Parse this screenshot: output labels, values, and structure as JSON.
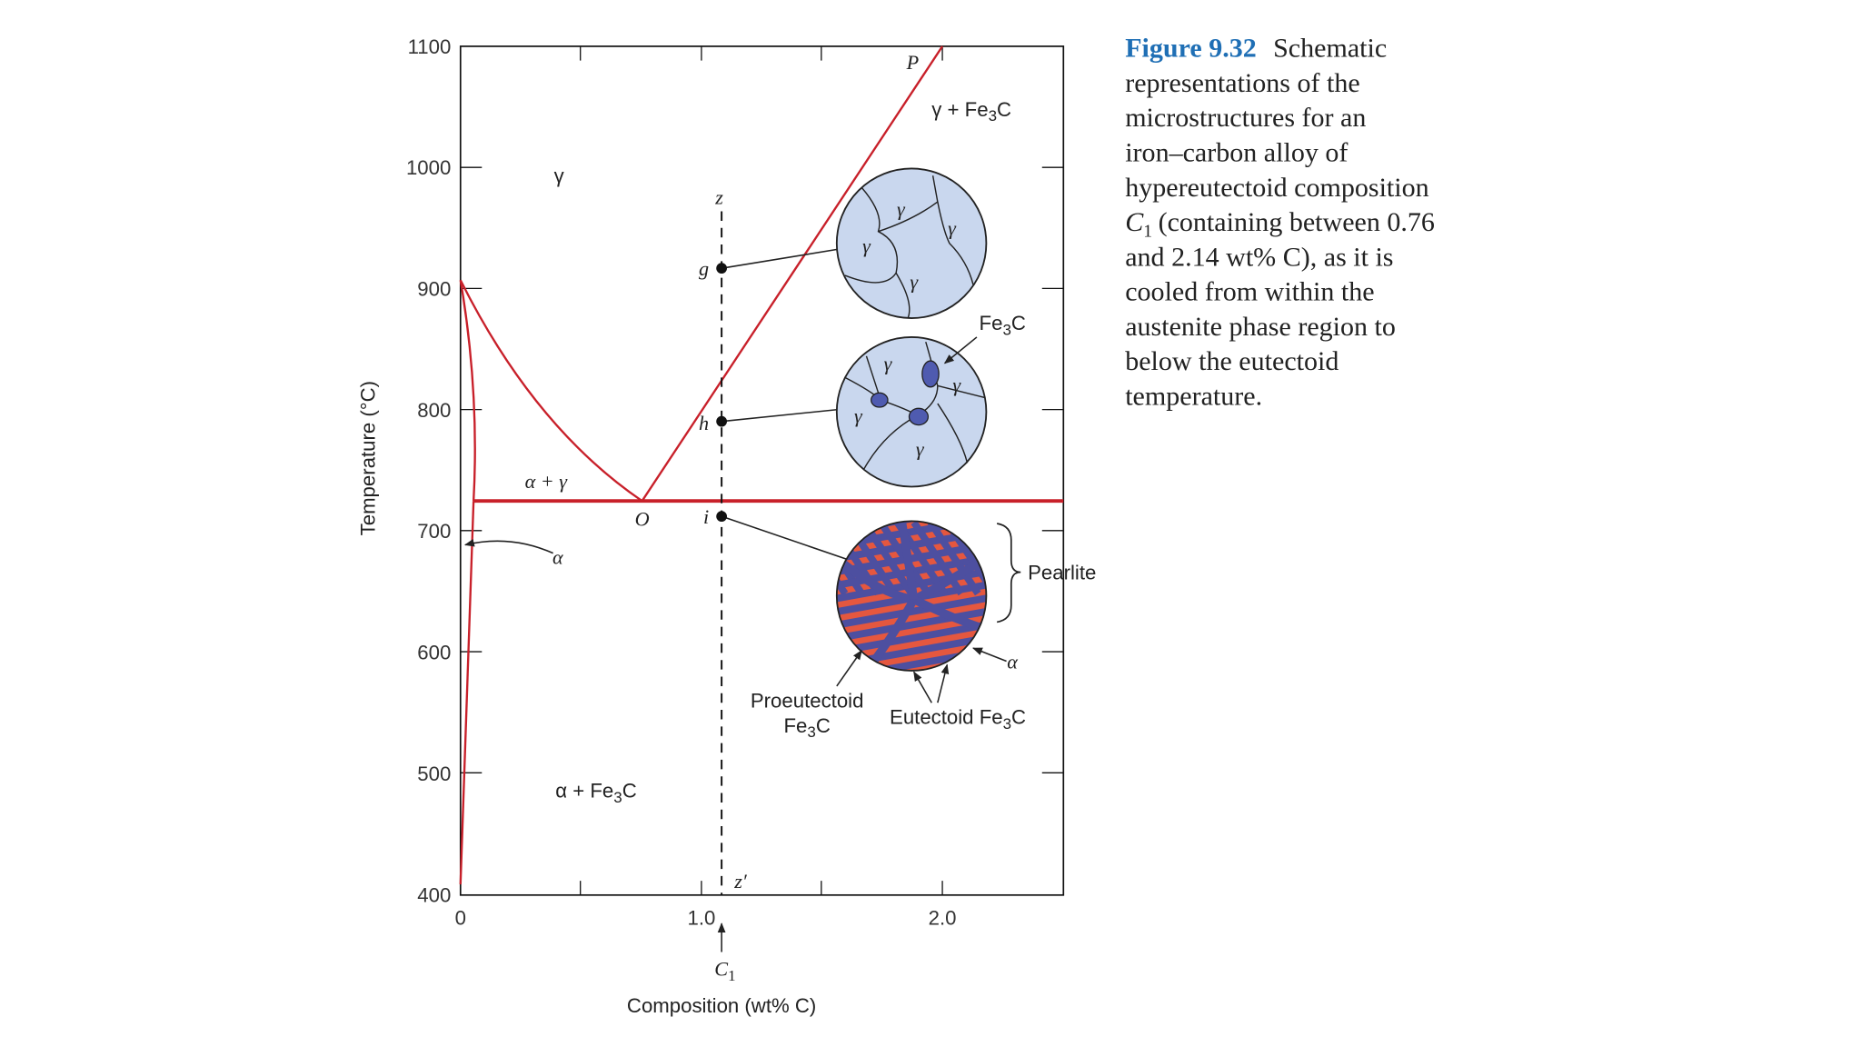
{
  "axes": {
    "y_label": "Temperature (°C)",
    "x_label": "Composition (wt% C)",
    "y_ticks": [
      "1100",
      "1000",
      "900",
      "800",
      "700",
      "600",
      "500",
      "400"
    ],
    "x_ticks": [
      "0",
      "1.0",
      "2.0"
    ]
  },
  "points": {
    "P": "P",
    "O": "O",
    "z": "z",
    "z_prime": "z′",
    "g": "g",
    "h": "h",
    "i": "i"
  },
  "composition": {
    "symbol": "C",
    "sub": "1"
  },
  "labels": {
    "gamma": "γ",
    "gamma_fe3c": {
      "text": "γ + Fe",
      "sub": "3",
      "tail": "C"
    },
    "alpha_gamma": "α + γ",
    "alpha": "α",
    "alpha_fe3c": {
      "text": "α + Fe",
      "sub": "3",
      "tail": "C"
    },
    "fe3c": {
      "text": "Fe",
      "sub": "3",
      "tail": "C"
    },
    "pearlite": "Pearlite",
    "pearlite_alpha": "α",
    "proeutectoid": "Proeutectoid",
    "proeutectoid_fe3c": {
      "text": "Fe",
      "sub": "3",
      "tail": "C"
    },
    "eutectoid_fe3c": {
      "text": "Eutectoid Fe",
      "sub": "3",
      "tail": "C"
    }
  },
  "micro": {
    "g": [
      "γ",
      "γ",
      "γ",
      "γ"
    ],
    "h": [
      "γ",
      "γ",
      "γ",
      "γ"
    ]
  },
  "caption": {
    "label": "Figure 9.32",
    "lines": [
      "Schematic",
      "representations of the",
      "microstructures for an",
      "iron–carbon alloy of",
      "hypereutectoid composition",
      "(containing between 0.76",
      "and 2.14 wt% C), as it is",
      "cooled from within the",
      "austenite phase region to",
      "below the eutectoid",
      "temperature."
    ],
    "symbol": "C",
    "sub": "1"
  }
}
